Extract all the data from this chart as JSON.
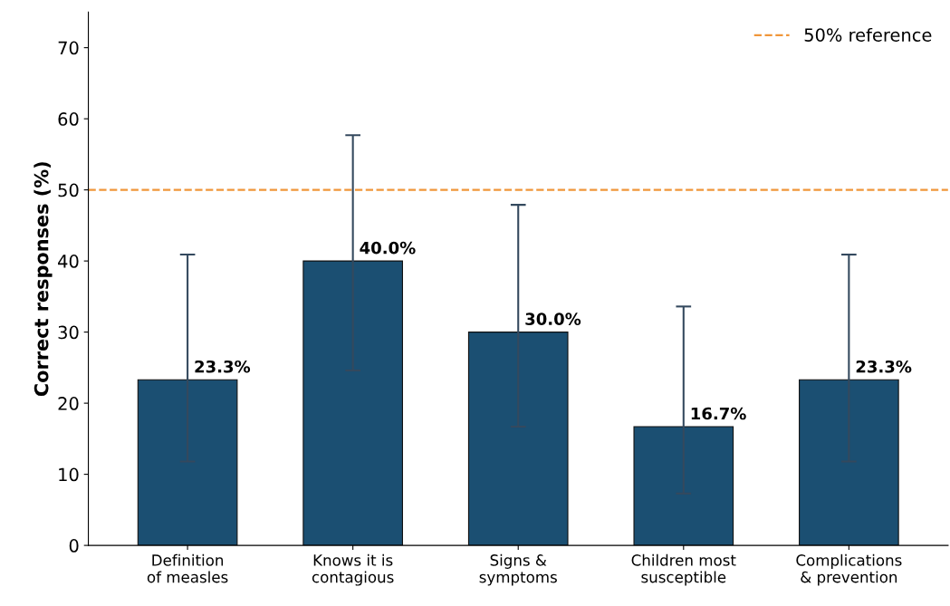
{
  "chart_data": {
    "type": "bar",
    "ylabel": "Correct responses (%)",
    "categories": [
      "Definition\nof measles",
      "Knows it is\ncontagious",
      "Signs &\nsymptoms",
      "Children most\nsusceptible",
      "Complications\n& prevention"
    ],
    "values": [
      23.3,
      40.0,
      30.0,
      16.7,
      23.3
    ],
    "value_labels": [
      "23.3%",
      "40.0%",
      "30.0%",
      "16.7%",
      "23.3%"
    ],
    "errors": [
      [
        11.8,
        40.9
      ],
      [
        24.6,
        57.7
      ],
      [
        16.7,
        47.9
      ],
      [
        7.3,
        33.6
      ],
      [
        11.8,
        40.9
      ]
    ],
    "color": "#1b4f72",
    "ylim": [
      0,
      75
    ],
    "yticks": [
      0,
      10,
      20,
      30,
      40,
      50,
      60,
      70
    ],
    "ref_lines": [
      {
        "axis": "y",
        "value": 50,
        "label": "50% reference",
        "color": "#f0963a",
        "line_style": "dashed"
      }
    ],
    "legend": "top right",
    "grid": false
  }
}
